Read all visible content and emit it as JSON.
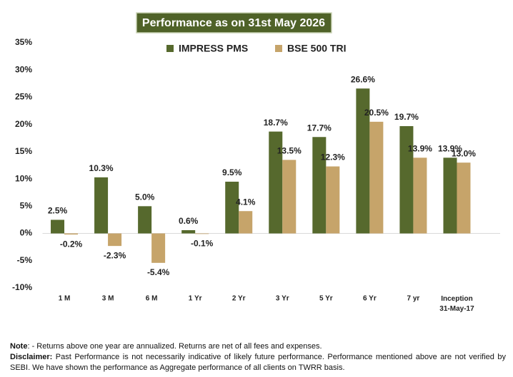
{
  "chart_data": {
    "type": "bar",
    "title": "Performance as on 31st May 2026",
    "categories": [
      "1 M",
      "3 M",
      "6 M",
      "1 Yr",
      "2 Yr",
      "3 Yr",
      "5 Yr",
      "6 Yr",
      "7 yr",
      "Inception\n31-May-17"
    ],
    "series": [
      {
        "name": "IMPRESS PMS",
        "color": "#56692d",
        "values": [
          2.5,
          10.3,
          5.0,
          0.6,
          9.5,
          18.7,
          17.7,
          26.6,
          19.7,
          13.9
        ],
        "value_labels": [
          "2.5%",
          "10.3%",
          "5.0%",
          "0.6%",
          "9.5%",
          "18.7%",
          "17.7%",
          "26.6%",
          "19.7%",
          "13.9%"
        ]
      },
      {
        "name": "BSE 500 TRI",
        "color": "#c6a46a",
        "values": [
          -0.2,
          -2.3,
          -5.4,
          -0.1,
          4.1,
          13.5,
          12.3,
          20.5,
          13.9,
          13.0
        ],
        "value_labels": [
          "-0.2%",
          "-2.3%",
          "-5.4%",
          "-0.1%",
          "4.1%",
          "13.5%",
          "12.3%",
          "20.5%",
          "13.9%",
          "13.0%"
        ]
      }
    ],
    "ylim": [
      -10,
      35
    ],
    "yticks": [
      {
        "value": -10,
        "label": "-10%"
      },
      {
        "value": -5,
        "label": "-5%"
      },
      {
        "value": 0,
        "label": "0%"
      },
      {
        "value": 5,
        "label": "5%"
      },
      {
        "value": 10,
        "label": "10%"
      },
      {
        "value": 15,
        "label": "15%"
      },
      {
        "value": 20,
        "label": "20%"
      },
      {
        "value": 25,
        "label": "25%"
      },
      {
        "value": 30,
        "label": "30%"
      },
      {
        "value": 35,
        "label": "35%"
      }
    ],
    "grid": false
  },
  "notes": [
    {
      "label": "Note",
      "text": ": - Returns above one year are annualized. Returns are net of all fees and expenses."
    },
    {
      "label": "Disclaimer:",
      "text": " Past Performance is not necessarily indicative of likely future performance. Performance mentioned above are not verified by SEBI. We have shown the performance as Aggregate performance of all clients on TWRR basis."
    }
  ]
}
